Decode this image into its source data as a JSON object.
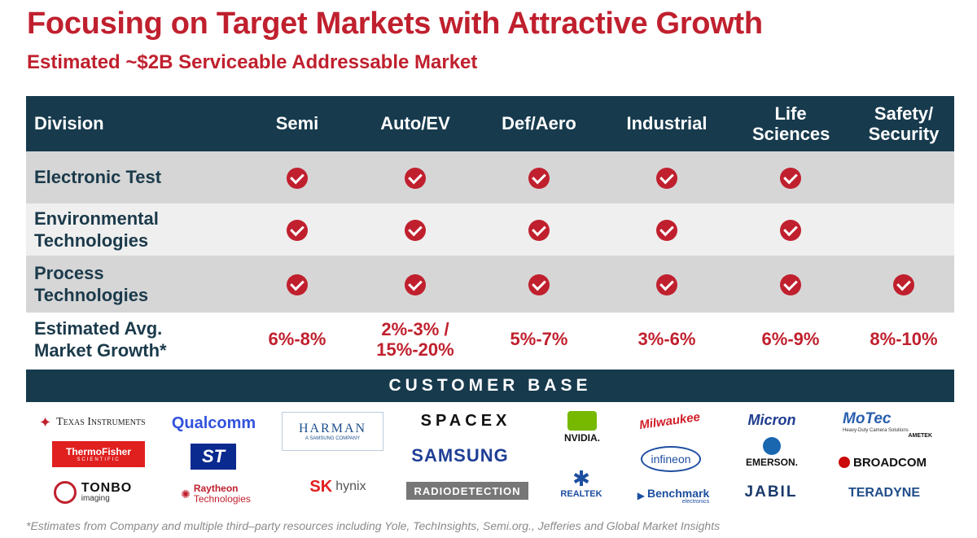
{
  "title": "Focusing on Target Markets with Attractive Growth",
  "subtitle": "Estimated ~$2B Serviceable Addressable Market",
  "table": {
    "headers": [
      "Division",
      "Semi",
      "Auto/EV",
      "Def/Aero",
      "Industrial",
      "Life Sciences",
      "Safety/ Security"
    ],
    "rows": [
      {
        "division": "Electronic Test",
        "checks": [
          true,
          true,
          true,
          true,
          true,
          false
        ]
      },
      {
        "division": "Environmental Technologies",
        "checks": [
          true,
          true,
          true,
          true,
          true,
          false
        ]
      },
      {
        "division": "Process Technologies",
        "checks": [
          true,
          true,
          true,
          true,
          true,
          true
        ]
      }
    ],
    "growth": {
      "label": "Estimated Avg. Market Growth*",
      "values": [
        "6%-8%",
        "2%-3% / 15%-20%",
        "5%-7%",
        "3%-6%",
        "6%-9%",
        "8%-10%"
      ]
    }
  },
  "customer_base": {
    "title": "CUSTOMER BASE",
    "logos": {
      "texas_instruments": "Texas Instruments",
      "qualcomm": "Qualcomm",
      "harman": "HARMAN",
      "harman_sub": "A SAMSUNG COMPANY",
      "spacex": "SPACEX",
      "nvidia": "NVIDIA.",
      "milwaukee": "Milwaukee",
      "micron": "Micron",
      "motec": "MoTec",
      "motec_sub": "Heavy-Duty Camera Solutions",
      "ametek": "AMETEK",
      "thermo_fisher": "ThermoFisher",
      "thermo_fisher_sub": "SCIENTIFIC",
      "st": "ST",
      "samsung": "SAMSUNG",
      "infineon": "infineon",
      "emerson": "EMERSON.",
      "broadcom": "BROADCOM",
      "tonbo": "TONBO",
      "tonbo_sub": "imaging",
      "raytheon": "Raytheon",
      "raytheon_sub": "Technologies",
      "sk_hynix_sk": "SK",
      "sk_hynix_hynix": "hynix",
      "radiodetection": "RADIODETECTION",
      "realtek": "REALTEK",
      "benchmark": "Benchmark",
      "benchmark_sub": "electronics",
      "jabil": "JABIL",
      "teradyne": "TERADYNE"
    }
  },
  "footnote": "*Estimates from Company and multiple third–party resources including Yole, TechInsights, Semi.org., Jefferies and Global Market Insights"
}
